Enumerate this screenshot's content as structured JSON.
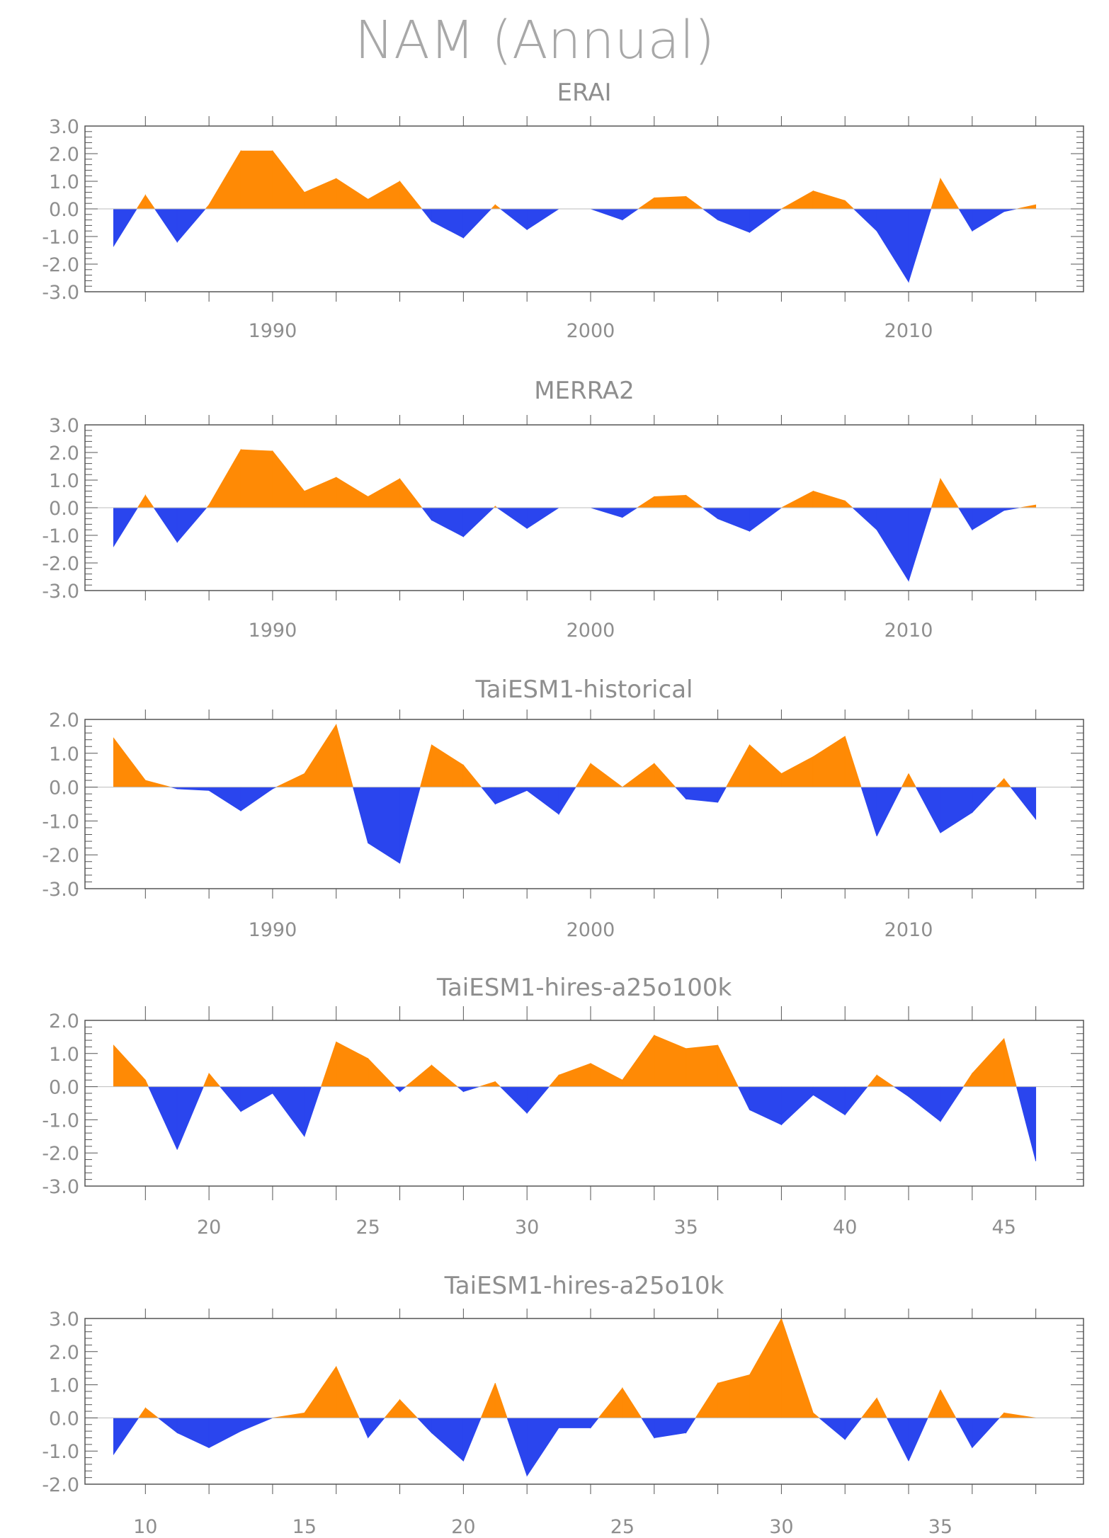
{
  "title": "NAM (Annual)",
  "colors": {
    "positive": "#ff8a05",
    "negative": "#2a45ee",
    "axis": "#555555",
    "text": "#8e8e8e"
  },
  "chart_data": [
    {
      "type": "area",
      "title": "ERAI",
      "ylim": [
        -3.0,
        3.0
      ],
      "xlim": [
        1984.1,
        2015.5
      ],
      "yticks": [
        "3.0",
        "2.0",
        "1.0",
        "0.0",
        "-1.0",
        "-2.0",
        "-3.0"
      ],
      "xtick_labels": [
        "1990",
        "2000",
        "2010"
      ],
      "x": [
        1985,
        1986,
        1987,
        1988,
        1989,
        1990,
        1991,
        1992,
        1993,
        1994,
        1995,
        1996,
        1997,
        1998,
        1999,
        2000,
        2001,
        2002,
        2003,
        2004,
        2005,
        2006,
        2007,
        2008,
        2009,
        2010,
        2011,
        2012,
        2013,
        2014
      ],
      "values": [
        -1.35,
        0.5,
        -1.2,
        0.15,
        2.1,
        2.1,
        0.6,
        1.1,
        0.35,
        1.0,
        -0.45,
        -1.05,
        0.15,
        -0.75,
        0.0,
        0.0,
        -0.4,
        0.4,
        0.45,
        -0.4,
        -0.85,
        0.0,
        0.65,
        0.3,
        -0.8,
        -2.65,
        1.1,
        -0.8,
        -0.1,
        0.15
      ]
    },
    {
      "type": "area",
      "title": "MERRA2",
      "ylim": [
        -3.0,
        3.0
      ],
      "xlim": [
        1984.1,
        2015.5
      ],
      "yticks": [
        "3.0",
        "2.0",
        "1.0",
        "0.0",
        "-1.0",
        "-2.0",
        "-3.0"
      ],
      "xtick_labels": [
        "1990",
        "2000",
        "2010"
      ],
      "x": [
        1985,
        1986,
        1987,
        1988,
        1989,
        1990,
        1991,
        1992,
        1993,
        1994,
        1995,
        1996,
        1997,
        1998,
        1999,
        2000,
        2001,
        2002,
        2003,
        2004,
        2005,
        2006,
        2007,
        2008,
        2009,
        2010,
        2011,
        2012,
        2013,
        2014
      ],
      "values": [
        -1.4,
        0.45,
        -1.25,
        0.1,
        2.1,
        2.05,
        0.6,
        1.1,
        0.4,
        1.05,
        -0.45,
        -1.05,
        0.05,
        -0.75,
        0.0,
        0.0,
        -0.35,
        0.4,
        0.45,
        -0.4,
        -0.85,
        0.0,
        0.6,
        0.25,
        -0.8,
        -2.65,
        1.05,
        -0.8,
        -0.1,
        0.1
      ]
    },
    {
      "type": "area",
      "title": "TaiESM1-historical",
      "ylim": [
        -3.0,
        2.0
      ],
      "xlim": [
        1984.1,
        2015.5
      ],
      "yticks": [
        "2.0",
        "1.0",
        "0.0",
        "-1.0",
        "-2.0",
        "-3.0"
      ],
      "xtick_labels": [
        "1990",
        "2000",
        "2010"
      ],
      "x": [
        1985,
        1986,
        1987,
        1988,
        1989,
        1990,
        1991,
        1992,
        1993,
        1994,
        1995,
        1996,
        1997,
        1998,
        1999,
        2000,
        2001,
        2002,
        2003,
        2004,
        2005,
        2006,
        2007,
        2008,
        2009,
        2010,
        2011,
        2012,
        2013,
        2014
      ],
      "values": [
        1.45,
        0.2,
        -0.05,
        -0.1,
        -0.7,
        -0.05,
        0.4,
        1.85,
        -1.65,
        -2.25,
        1.25,
        0.65,
        -0.5,
        -0.1,
        -0.8,
        0.7,
        0.0,
        0.7,
        -0.35,
        -0.45,
        1.25,
        0.4,
        0.9,
        1.5,
        -1.45,
        0.4,
        -1.35,
        -0.75,
        0.25,
        -0.95
      ]
    },
    {
      "type": "area",
      "title": "TaiESM1-hires-a25o100k",
      "ylim": [
        -3.0,
        2.0
      ],
      "xlim": [
        16.1,
        47.5
      ],
      "yticks": [
        "2.0",
        "1.0",
        "0.0",
        "-1.0",
        "-2.0",
        "-3.0"
      ],
      "xtick_labels": [
        "20",
        "25",
        "30",
        "35",
        "40",
        "45"
      ],
      "x": [
        17,
        18,
        19,
        20,
        21,
        22,
        23,
        24,
        25,
        26,
        27,
        28,
        29,
        30,
        31,
        32,
        33,
        34,
        35,
        36,
        37,
        38,
        39,
        40,
        41,
        42,
        43,
        44,
        45,
        46
      ],
      "values": [
        1.25,
        0.2,
        -1.9,
        0.4,
        -0.75,
        -0.2,
        -1.5,
        1.35,
        0.85,
        -0.15,
        0.65,
        -0.15,
        0.15,
        -0.8,
        0.35,
        0.7,
        0.2,
        1.55,
        1.15,
        1.25,
        -0.7,
        -1.15,
        -0.25,
        -0.85,
        0.35,
        -0.3,
        -1.05,
        0.4,
        1.45,
        -2.25
      ]
    },
    {
      "type": "area",
      "title": "TaiESM1-hires-a25o10k",
      "ylim": [
        -2.0,
        3.0
      ],
      "xlim": [
        8.1,
        39.5
      ],
      "yticks": [
        "3.0",
        "2.0",
        "1.0",
        "0.0",
        "-1.0",
        "-2.0"
      ],
      "xtick_labels": [
        "10",
        "15",
        "20",
        "25",
        "30",
        "35"
      ],
      "x": [
        9,
        10,
        11,
        12,
        13,
        14,
        15,
        16,
        17,
        18,
        19,
        20,
        21,
        22,
        23,
        24,
        25,
        26,
        27,
        28,
        29,
        30,
        31,
        32,
        33,
        34,
        35,
        36,
        37,
        38
      ],
      "values": [
        -1.1,
        0.3,
        -0.45,
        -0.9,
        -0.4,
        0.0,
        0.15,
        1.55,
        -0.6,
        0.55,
        -0.45,
        -1.3,
        1.05,
        -1.75,
        -0.3,
        -0.3,
        0.9,
        -0.6,
        -0.45,
        1.05,
        1.3,
        3.0,
        0.15,
        -0.65,
        0.6,
        -1.3,
        0.85,
        -0.9,
        0.15,
        0.0
      ]
    }
  ]
}
